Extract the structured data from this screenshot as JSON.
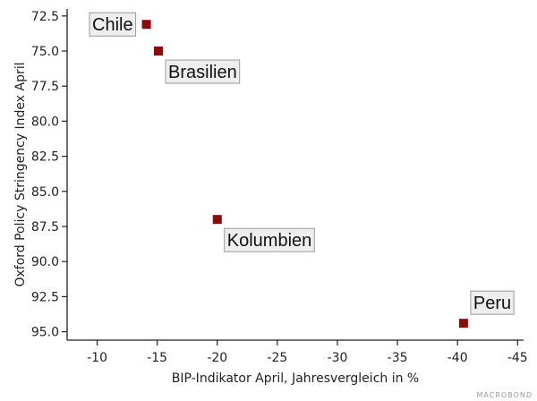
{
  "chart_data": {
    "type": "scatter",
    "xlabel": "BIP-Indikator April, Jahresvergleich in %",
    "ylabel": "Oxford Policy Stringency Index April",
    "xlim": [
      -7.5,
      -45.5
    ],
    "ylim": [
      72.0,
      95.6
    ],
    "xticks": [
      -10,
      -15,
      -20,
      -25,
      -30,
      -35,
      -40,
      -45
    ],
    "yticks": [
      72.5,
      75.0,
      77.5,
      80.0,
      82.5,
      85.0,
      87.5,
      90.0,
      92.5,
      95.0
    ],
    "grid": false,
    "points": [
      {
        "label": "Chile",
        "x": -14.1,
        "y": 73.1
      },
      {
        "label": "Brasilien",
        "x": -15.1,
        "y": 75.0
      },
      {
        "label": "Kolumbien",
        "x": -20.0,
        "y": 87.0
      },
      {
        "label": "Peru",
        "x": -40.5,
        "y": 94.4
      }
    ],
    "marker_color": "#8b0a0a"
  },
  "source": "MACROBOND"
}
